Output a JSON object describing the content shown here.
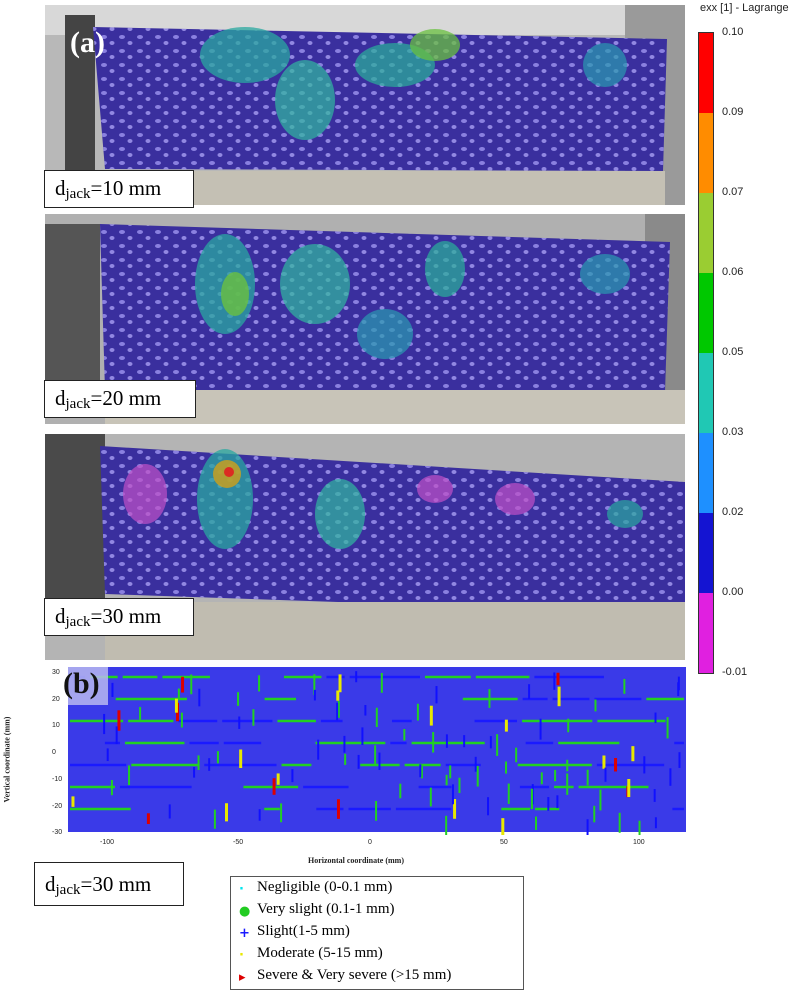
{
  "panel_a": {
    "label": "(a)",
    "photos": [
      {
        "djack_main": "d",
        "djack_sub": "jack",
        "djack_value": "=10 mm"
      },
      {
        "djack_main": "d",
        "djack_sub": "jack",
        "djack_value": "=20 mm"
      },
      {
        "djack_main": "d",
        "djack_sub": "jack",
        "djack_value": "=30 mm"
      }
    ]
  },
  "colorbar": {
    "title": "exx [1] - Lagrange",
    "ticks": [
      "0.10",
      "0.09",
      "0.07",
      "0.06",
      "0.05",
      "0.03",
      "0.02",
      "0.00",
      "-0.01"
    ],
    "colors": [
      "#ff0000",
      "#ff8c00",
      "#9acd32",
      "#00c800",
      "#20c8b4",
      "#1e90ff",
      "#1414d2",
      "#e020e0"
    ]
  },
  "panel_b": {
    "label": "(b)",
    "ylabel": "Vertical coordinate (mm)",
    "xlabel": "Horizontal coordinate (mm)",
    "xticks": [
      "-100",
      "-50",
      "0",
      "50",
      "100"
    ],
    "yticks": [
      "30",
      "20",
      "10",
      "0",
      "-10",
      "-20",
      "-30"
    ],
    "djack_main": "d",
    "djack_sub": "jack",
    "djack_value": "=30 mm"
  },
  "legend": {
    "items": [
      {
        "label": "Negligible (0-0.1 mm)",
        "symbol": "·",
        "color": "#00e5ee"
      },
      {
        "label": "Very slight (0.1-1 mm)",
        "symbol": "●",
        "color": "#22cc22"
      },
      {
        "label": "Slight(1-5 mm)",
        "symbol": "+",
        "color": "#1a1aff"
      },
      {
        "label": "Moderate (5-15 mm)",
        "symbol": "·",
        "color": "#e8e800"
      },
      {
        "label": "Severe & Very severe (>15 mm)",
        "symbol": "▸",
        "color": "#dd0000"
      }
    ]
  }
}
